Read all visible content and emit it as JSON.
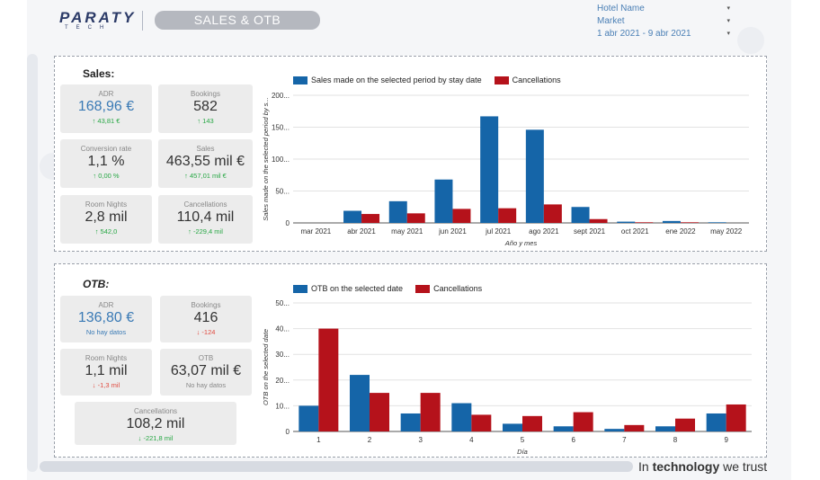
{
  "header": {
    "logo_text": "PARATY",
    "logo_sub": "TECH",
    "title": "SALES & OTB"
  },
  "filters": [
    {
      "label": "Hotel Name"
    },
    {
      "label": "Market"
    },
    {
      "label": "1 abr 2021 - 9 abr 2021"
    }
  ],
  "sales": {
    "title": "Sales:",
    "kpis": [
      {
        "label": "ADR",
        "value": "168,96 €",
        "delta": "43,81 €",
        "dir": "up"
      },
      {
        "label": "Bookings",
        "value": "582",
        "delta": "143",
        "dir": "up"
      },
      {
        "label": "Conversion rate",
        "value": "1,1 %",
        "delta": "0,00 %",
        "dir": "up"
      },
      {
        "label": "Sales",
        "value": "463,55 mil €",
        "delta": "457,01 mil €",
        "dir": "up"
      },
      {
        "label": "Room Nights",
        "value": "2,8 mil",
        "delta": "542,0",
        "dir": "up"
      },
      {
        "label": "Cancellations",
        "value": "110,4 mil",
        "delta": "-229,4 mil",
        "dir": "up"
      }
    ]
  },
  "otb": {
    "title": "OTB:",
    "kpis": [
      {
        "label": "ADR",
        "value": "136,80 €",
        "delta": "No hay datos",
        "dir": "none"
      },
      {
        "label": "Bookings",
        "value": "416",
        "delta": "-124",
        "dir": "down"
      },
      {
        "label": "Room Nights",
        "value": "1,1 mil",
        "delta": "-1,3 mil",
        "dir": "down"
      },
      {
        "label": "OTB",
        "value": "63,07 mil €",
        "delta": "No hay datos",
        "dir": "none"
      },
      {
        "label": "Cancellations",
        "value": "108,2 mil",
        "delta": "-221,8 mil",
        "dir": "up"
      }
    ]
  },
  "chart_data": [
    {
      "type": "bar",
      "categories": [
        "mar 2021",
        "abr 2021",
        "may 2021",
        "jun 2021",
        "jul 2021",
        "ago 2021",
        "sept 2021",
        "oct 2021",
        "ene 2022",
        "may 2022"
      ],
      "series": [
        {
          "name": "Sales made on the selected period by stay date",
          "values": [
            0,
            19,
            34,
            68,
            167,
            146,
            25,
            2,
            3,
            1
          ],
          "color": "#1565a8"
        },
        {
          "name": "Cancellations",
          "values": [
            0,
            14,
            15,
            22,
            23,
            29,
            6,
            1,
            1,
            0
          ],
          "color": "#b5121b"
        }
      ],
      "xlabel": "Año y mes",
      "ylabel": "Sales made on the selected period by s...",
      "ylim": [
        0,
        200
      ],
      "yticks": [
        "0",
        "50...",
        "100...",
        "150...",
        "200..."
      ],
      "grid": true,
      "legend": "top-left"
    },
    {
      "type": "bar",
      "categories": [
        "1",
        "2",
        "3",
        "4",
        "5",
        "6",
        "7",
        "8",
        "9"
      ],
      "series": [
        {
          "name": "OTB on the selected date",
          "values": [
            10,
            22,
            7,
            11,
            3,
            2,
            1,
            2,
            7
          ],
          "color": "#1565a8"
        },
        {
          "name": "Cancellations",
          "values": [
            40,
            15,
            15,
            6.5,
            6,
            7.5,
            2.5,
            5,
            10.5
          ],
          "color": "#b5121b"
        }
      ],
      "xlabel": "Día",
      "ylabel": "OTB on the selected date",
      "ylim": [
        0,
        50
      ],
      "yticks": [
        "0",
        "10...",
        "20...",
        "30...",
        "40...",
        "50..."
      ],
      "grid": true,
      "legend": "top-left"
    }
  ],
  "footer": {
    "tagline_pre": "In ",
    "tagline_bold": "technology",
    "tagline_post": " we trust"
  }
}
